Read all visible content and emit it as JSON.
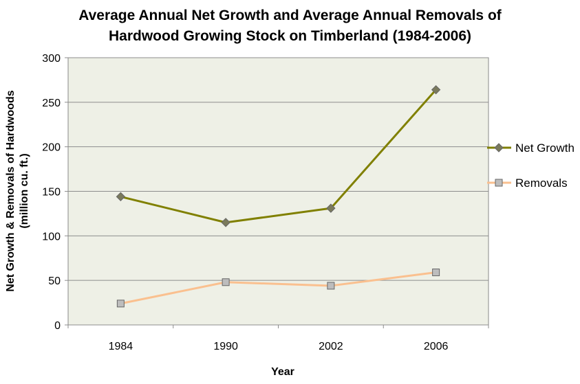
{
  "chart_data": {
    "type": "line",
    "title_lines": [
      "Average Annual Net Growth and Average Annual Removals of",
      "Hardwood Growing Stock on Timberland (1984-2006)"
    ],
    "xlabel": "Year",
    "ylabel_lines": [
      "Net Growth & Removals of Hardwoods",
      "(million cu. ft.)"
    ],
    "categories": [
      "1984",
      "1990",
      "2002",
      "2006"
    ],
    "ylim": [
      0,
      300
    ],
    "yticks": [
      "0",
      "50",
      "100",
      "150",
      "200",
      "250",
      "300"
    ],
    "grid": true,
    "legend_position": "right",
    "plot_background": "#eef0e6",
    "series": [
      {
        "name": "Net Growth",
        "values": [
          144,
          115,
          131,
          264
        ],
        "color": "#808000",
        "marker": "diamond",
        "marker_color": "#7a7a5c"
      },
      {
        "name": "Removals",
        "values": [
          24,
          48,
          44,
          59
        ],
        "color": "#fac08f",
        "marker": "square",
        "marker_color": "#bdbdbd"
      }
    ]
  }
}
